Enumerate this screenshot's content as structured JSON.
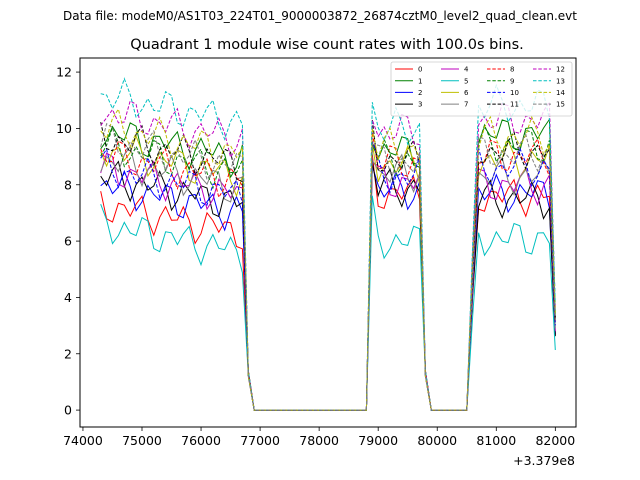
{
  "figure": {
    "suptitle": "Data file: modeM0/AS1T03_224T01_9000003872_26874cztM0_level2_quad_clean.evt",
    "title": "Quadrant 1 module wise count rates with 100.0s bins.",
    "x_offset_label": "+3.379e8"
  },
  "chart_data": {
    "type": "line",
    "title": "Quadrant 1 module wise count rates with 100.0s bins.",
    "xlabel": "",
    "ylabel": "",
    "x_offset": 337900000,
    "xlim": [
      73950,
      82350
    ],
    "ylim": [
      -0.6,
      12.5
    ],
    "xticks": [
      74000,
      75000,
      76000,
      77000,
      78000,
      79000,
      80000,
      81000,
      82000
    ],
    "xtick_labels": [
      "74000",
      "75000",
      "76000",
      "77000",
      "78000",
      "79000",
      "80000",
      "81000",
      "82000"
    ],
    "yticks": [
      0,
      2,
      4,
      6,
      8,
      10,
      12
    ],
    "ytick_labels": [
      "0",
      "2",
      "4",
      "6",
      "8",
      "10",
      "12"
    ],
    "legend_position": "top-right",
    "segments": [
      {
        "x_start": 74300,
        "x_end": 76700,
        "step": 100
      },
      {
        "x_start": 78900,
        "x_end": 79700,
        "step": 100
      },
      {
        "x_start": 80600,
        "x_end": 82000,
        "step": 100
      }
    ],
    "gaps": [
      {
        "x_from": 76700,
        "x_to": 78900,
        "via": [
          76800,
          76900,
          78800
        ]
      },
      {
        "x_from": 79700,
        "x_to": 80600,
        "via": [
          79800,
          79900,
          80500
        ]
      }
    ],
    "series": [
      {
        "name": "0",
        "color": "#ff0000",
        "dash": "solid",
        "level1": 6.3,
        "level2": 7.7,
        "level3": 7.6,
        "seed": 1
      },
      {
        "name": "1",
        "color": "#008000",
        "dash": "solid",
        "level1": 8.9,
        "level2": 9.2,
        "level3": 9.8,
        "seed": 2
      },
      {
        "name": "2",
        "color": "#0000ff",
        "dash": "solid",
        "level1": 7.0,
        "level2": 7.8,
        "level3": 7.7,
        "seed": 3
      },
      {
        "name": "3",
        "color": "#000000",
        "dash": "solid",
        "level1": 7.3,
        "level2": 7.9,
        "level3": 7.5,
        "seed": 4
      },
      {
        "name": "4",
        "color": "#bf00bf",
        "dash": "solid",
        "level1": 7.6,
        "level2": 8.1,
        "level3": 8.0,
        "seed": 5
      },
      {
        "name": "5",
        "color": "#00bfbf",
        "dash": "solid",
        "level1": 5.6,
        "level2": 6.0,
        "level3": 6.1,
        "seed": 6
      },
      {
        "name": "6",
        "color": "#bfbf00",
        "dash": "solid",
        "level1": 8.3,
        "level2": 8.7,
        "level3": 8.9,
        "seed": 7
      },
      {
        "name": "7",
        "color": "#808080",
        "dash": "solid",
        "level1": 7.9,
        "level2": 8.4,
        "level3": 8.3,
        "seed": 8
      },
      {
        "name": "8",
        "color": "#ff0000",
        "dash": "dashed",
        "level1": 8.1,
        "level2": 8.8,
        "level3": 9.0,
        "seed": 9
      },
      {
        "name": "9",
        "color": "#008000",
        "dash": "dashed",
        "level1": 8.4,
        "level2": 8.9,
        "level3": 9.4,
        "seed": 10
      },
      {
        "name": "10",
        "color": "#0000ff",
        "dash": "dashed",
        "level1": 7.6,
        "level2": 8.3,
        "level3": 8.6,
        "seed": 11
      },
      {
        "name": "11",
        "color": "#000000",
        "dash": "dashed",
        "level1": 8.7,
        "level2": 8.9,
        "level3": 9.2,
        "seed": 12
      },
      {
        "name": "12",
        "color": "#bf00bf",
        "dash": "dashed",
        "level1": 9.6,
        "level2": 9.9,
        "level3": 10.3,
        "seed": 13
      },
      {
        "name": "13",
        "color": "#00bfbf",
        "dash": "dashed",
        "level1": 10.2,
        "level2": 10.0,
        "level3": 10.8,
        "seed": 14
      },
      {
        "name": "14",
        "color": "#bfbf00",
        "dash": "dashed",
        "level1": 9.1,
        "level2": 9.3,
        "level3": 9.7,
        "seed": 15
      },
      {
        "name": "15",
        "color": "#808080",
        "dash": "dashed",
        "level1": 8.6,
        "level2": 8.8,
        "level3": 9.1,
        "seed": 16
      }
    ]
  }
}
